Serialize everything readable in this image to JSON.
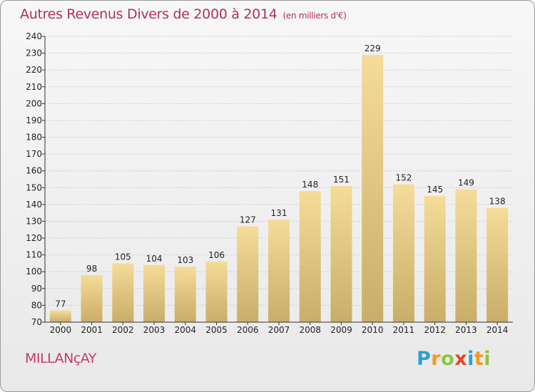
{
  "title": {
    "main": "Autres Revenus Divers de 2000 à 2014",
    "unit": "(en milliers d'€)"
  },
  "commune": "MILLANçAY",
  "logo": {
    "text": "Proxiti",
    "letters": [
      {
        "ch": "P",
        "color": "#2aa0d8"
      },
      {
        "ch": "r",
        "color": "#f29a1e"
      },
      {
        "ch": "o",
        "color": "#8cc63f"
      },
      {
        "ch": "x",
        "color": "#e8452c"
      },
      {
        "ch": "i",
        "color": "#2aa0d8"
      },
      {
        "ch": "t",
        "color": "#f29a1e"
      },
      {
        "ch": "i",
        "color": "#8cc63f"
      }
    ]
  },
  "colors": {
    "bar_top": "#f5dc98",
    "bar_bottom": "#c9ad68",
    "title": "#b0315a",
    "commune": "#c83a66",
    "grid": "#cccccc",
    "axis": "#333333"
  },
  "chart_data": {
    "type": "bar",
    "title": "Autres Revenus Divers de 2000 à 2014",
    "subtitle": "(en milliers d'€)",
    "xlabel": "",
    "ylabel": "",
    "categories": [
      "2000",
      "2001",
      "2002",
      "2003",
      "2004",
      "2005",
      "2006",
      "2007",
      "2008",
      "2009",
      "2010",
      "2011",
      "2012",
      "2013",
      "2014"
    ],
    "values": [
      77,
      98,
      105,
      104,
      103,
      106,
      127,
      131,
      148,
      151,
      229,
      152,
      145,
      149,
      138
    ],
    "ylim": [
      70,
      240
    ],
    "yticks": [
      70,
      80,
      90,
      100,
      110,
      120,
      130,
      140,
      150,
      160,
      170,
      180,
      190,
      200,
      210,
      220,
      230,
      240
    ],
    "grid": true,
    "data_labels": true
  }
}
